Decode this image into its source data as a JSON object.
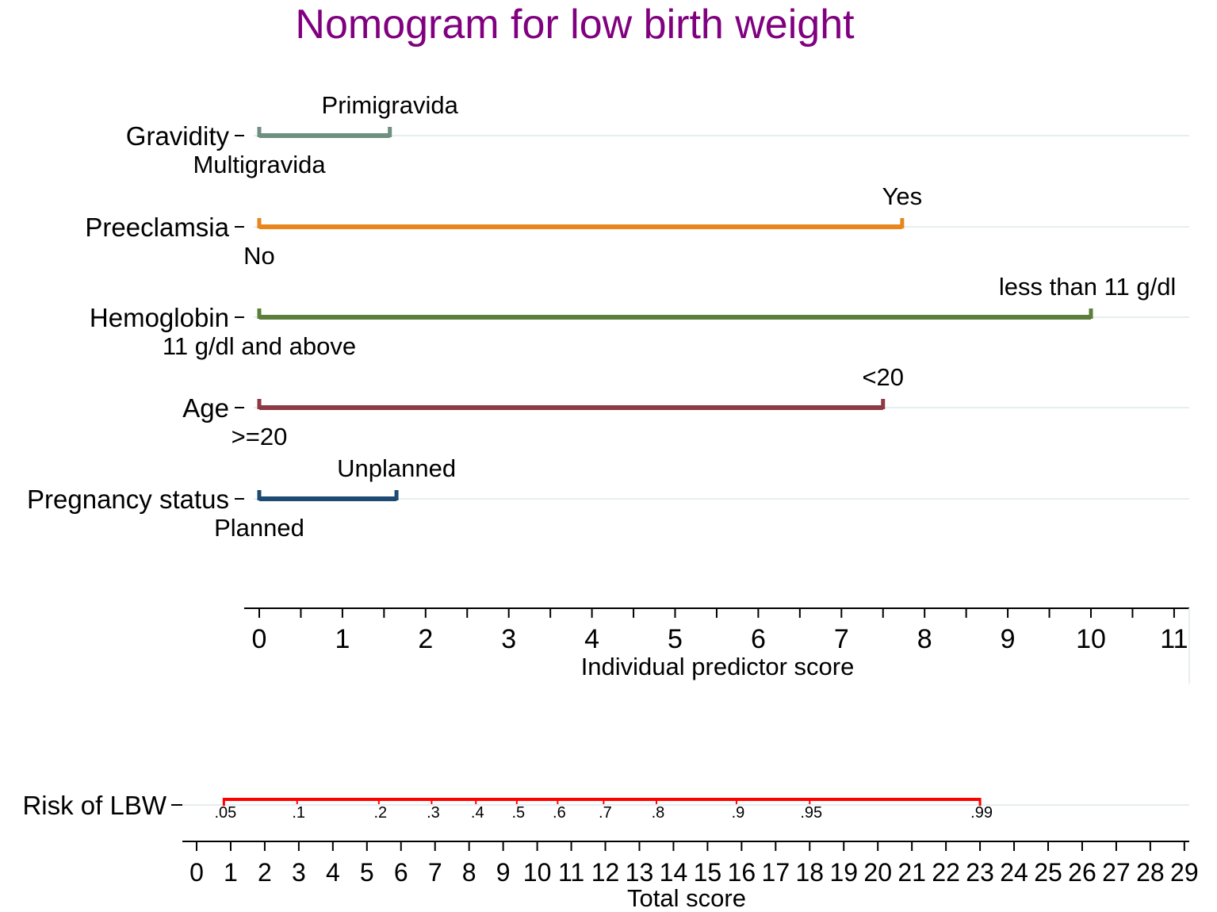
{
  "chart_data": {
    "type": "nomogram",
    "title": "Nomogram for low birth weight",
    "title_color": "#800080",
    "predictors": [
      {
        "name": "Gravidity",
        "color": "#6F8F80",
        "low_label": "Multigravida",
        "high_label": "Primigravida",
        "low_score": 0,
        "high_score": 1.57
      },
      {
        "name": "Preeclamsia",
        "color": "#E8861C",
        "low_label": "No",
        "high_label": "Yes",
        "low_score": 0,
        "high_score": 7.73
      },
      {
        "name": "Hemoglobin",
        "color": "#5B7F3A",
        "low_label": "11 g/dl and above",
        "high_label": "less than 11 g/dl",
        "low_score": 0,
        "high_score": 10
      },
      {
        "name": "Age",
        "color": "#8E3A44",
        "low_label": ">=20",
        "high_label": "<20",
        "low_score": 0,
        "high_score": 7.5
      },
      {
        "name": "Pregnancy status",
        "color": "#1C4A72",
        "low_label": "Planned",
        "high_label": "Unplanned",
        "low_score": 0,
        "high_score": 1.65
      }
    ],
    "individual_axis": {
      "title": "Individual predictor score",
      "range": [
        0,
        11
      ],
      "ticks": [
        "0",
        "1",
        "2",
        "3",
        "4",
        "5",
        "6",
        "7",
        "8",
        "9",
        "10",
        "11"
      ]
    },
    "risk_scale": {
      "label": "Risk of LBW",
      "color": "#FF0000",
      "total_range": [
        0.8,
        23
      ],
      "ticks": [
        {
          "label": ".05",
          "total": 0.8
        },
        {
          "label": ".1",
          "total": 2.95
        },
        {
          "label": ".2",
          "total": 5.35
        },
        {
          "label": ".3",
          "total": 6.9
        },
        {
          "label": ".4",
          "total": 8.2
        },
        {
          "label": ".5",
          "total": 9.4
        },
        {
          "label": ".6",
          "total": 10.6
        },
        {
          "label": ".7",
          "total": 11.95
        },
        {
          "label": ".8",
          "total": 13.5
        },
        {
          "label": ".9",
          "total": 15.85
        },
        {
          "label": ".95",
          "total": 18.0
        },
        {
          "label": ".99",
          "total": 23.0
        }
      ]
    },
    "total_axis": {
      "title": "Total score",
      "range": [
        0,
        29
      ],
      "ticks": [
        "0",
        "1",
        "2",
        "3",
        "4",
        "5",
        "6",
        "7",
        "8",
        "9",
        "10",
        "11",
        "12",
        "13",
        "14",
        "15",
        "16",
        "17",
        "18",
        "19",
        "20",
        "21",
        "22",
        "23",
        "24",
        "25",
        "26",
        "27",
        "28",
        "29"
      ]
    }
  }
}
